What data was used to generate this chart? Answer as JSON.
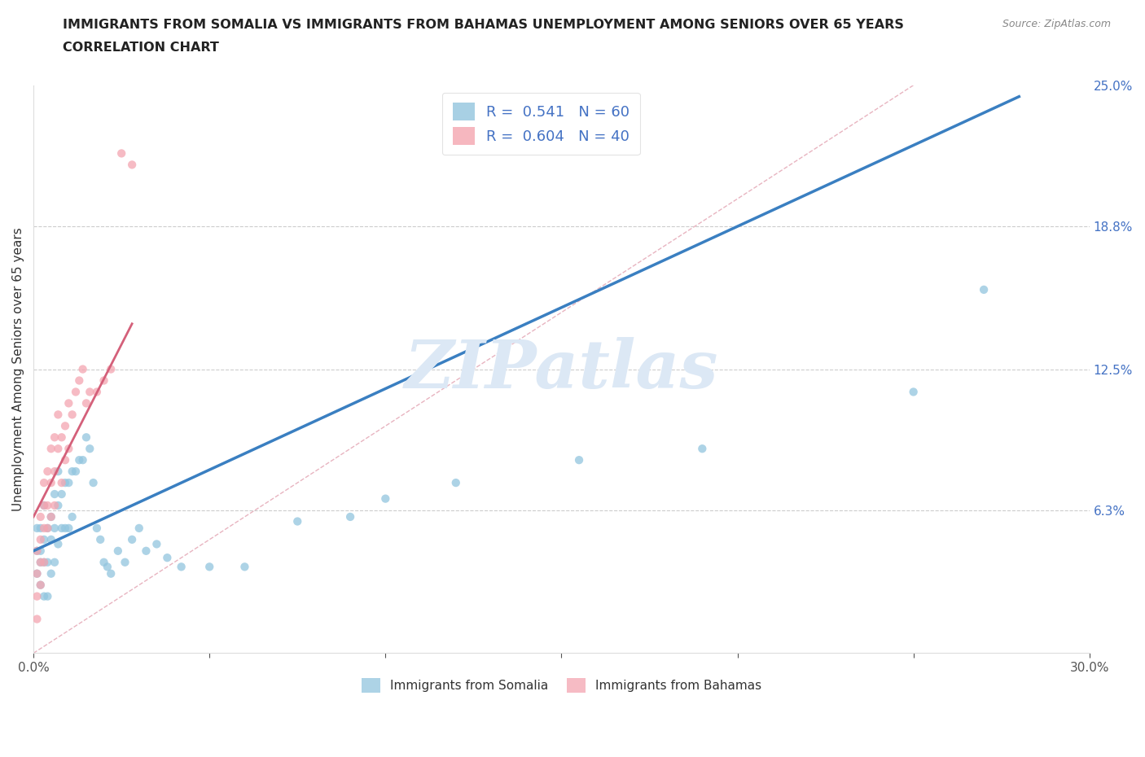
{
  "title_line1": "IMMIGRANTS FROM SOMALIA VS IMMIGRANTS FROM BAHAMAS UNEMPLOYMENT AMONG SENIORS OVER 65 YEARS",
  "title_line2": "CORRELATION CHART",
  "source": "Source: ZipAtlas.com",
  "ylabel": "Unemployment Among Seniors over 65 years",
  "xlim": [
    0.0,
    0.3
  ],
  "ylim": [
    0.0,
    0.25
  ],
  "xtick_vals": [
    0.0,
    0.05,
    0.1,
    0.15,
    0.2,
    0.25,
    0.3
  ],
  "xtick_labels": [
    "0.0%",
    "",
    "",
    "",
    "",
    "",
    "30.0%"
  ],
  "ytick_right_labels": [
    "6.3%",
    "12.5%",
    "18.8%",
    "25.0%"
  ],
  "ytick_right_vals": [
    0.063,
    0.125,
    0.188,
    0.25
  ],
  "somalia_R": 0.541,
  "somalia_N": 60,
  "bahamas_R": 0.604,
  "bahamas_N": 40,
  "somalia_scatter_color": "#92c5de",
  "bahamas_scatter_color": "#f4a5b0",
  "trendline_somalia_color": "#3a7fc1",
  "trendline_bahamas_color": "#d4607a",
  "refline_color": "#e8b4c0",
  "grid_color": "#cccccc",
  "background_color": "#ffffff",
  "watermark": "ZIPatlas",
  "watermark_color": "#dce8f5",
  "somalia_x": [
    0.001,
    0.001,
    0.001,
    0.002,
    0.002,
    0.002,
    0.002,
    0.003,
    0.003,
    0.003,
    0.003,
    0.004,
    0.004,
    0.004,
    0.005,
    0.005,
    0.005,
    0.006,
    0.006,
    0.006,
    0.007,
    0.007,
    0.007,
    0.008,
    0.008,
    0.009,
    0.009,
    0.01,
    0.01,
    0.011,
    0.011,
    0.012,
    0.013,
    0.014,
    0.015,
    0.016,
    0.017,
    0.018,
    0.019,
    0.02,
    0.021,
    0.022,
    0.024,
    0.026,
    0.028,
    0.03,
    0.032,
    0.035,
    0.038,
    0.042,
    0.05,
    0.06,
    0.075,
    0.09,
    0.1,
    0.12,
    0.155,
    0.19,
    0.25,
    0.27
  ],
  "somalia_y": [
    0.055,
    0.045,
    0.035,
    0.055,
    0.045,
    0.04,
    0.03,
    0.065,
    0.05,
    0.04,
    0.025,
    0.055,
    0.04,
    0.025,
    0.06,
    0.05,
    0.035,
    0.07,
    0.055,
    0.04,
    0.08,
    0.065,
    0.048,
    0.07,
    0.055,
    0.075,
    0.055,
    0.075,
    0.055,
    0.08,
    0.06,
    0.08,
    0.085,
    0.085,
    0.095,
    0.09,
    0.075,
    0.055,
    0.05,
    0.04,
    0.038,
    0.035,
    0.045,
    0.04,
    0.05,
    0.055,
    0.045,
    0.048,
    0.042,
    0.038,
    0.038,
    0.038,
    0.058,
    0.06,
    0.068,
    0.075,
    0.085,
    0.09,
    0.115,
    0.16
  ],
  "bahamas_x": [
    0.001,
    0.001,
    0.001,
    0.001,
    0.002,
    0.002,
    0.002,
    0.002,
    0.003,
    0.003,
    0.003,
    0.003,
    0.004,
    0.004,
    0.004,
    0.005,
    0.005,
    0.005,
    0.006,
    0.006,
    0.006,
    0.007,
    0.007,
    0.008,
    0.008,
    0.009,
    0.009,
    0.01,
    0.01,
    0.011,
    0.012,
    0.013,
    0.014,
    0.015,
    0.016,
    0.018,
    0.02,
    0.022,
    0.025,
    0.028
  ],
  "bahamas_y": [
    0.045,
    0.035,
    0.025,
    0.015,
    0.06,
    0.05,
    0.04,
    0.03,
    0.075,
    0.065,
    0.055,
    0.04,
    0.08,
    0.065,
    0.055,
    0.09,
    0.075,
    0.06,
    0.095,
    0.08,
    0.065,
    0.105,
    0.09,
    0.095,
    0.075,
    0.1,
    0.085,
    0.11,
    0.09,
    0.105,
    0.115,
    0.12,
    0.125,
    0.11,
    0.115,
    0.115,
    0.12,
    0.125,
    0.22,
    0.215
  ],
  "somalia_trendline_x0": 0.0,
  "somalia_trendline_y0": 0.045,
  "somalia_trendline_x1": 0.28,
  "somalia_trendline_y1": 0.245,
  "bahamas_trendline_x0": 0.0,
  "bahamas_trendline_y0": 0.06,
  "bahamas_trendline_x1": 0.028,
  "bahamas_trendline_y1": 0.145
}
